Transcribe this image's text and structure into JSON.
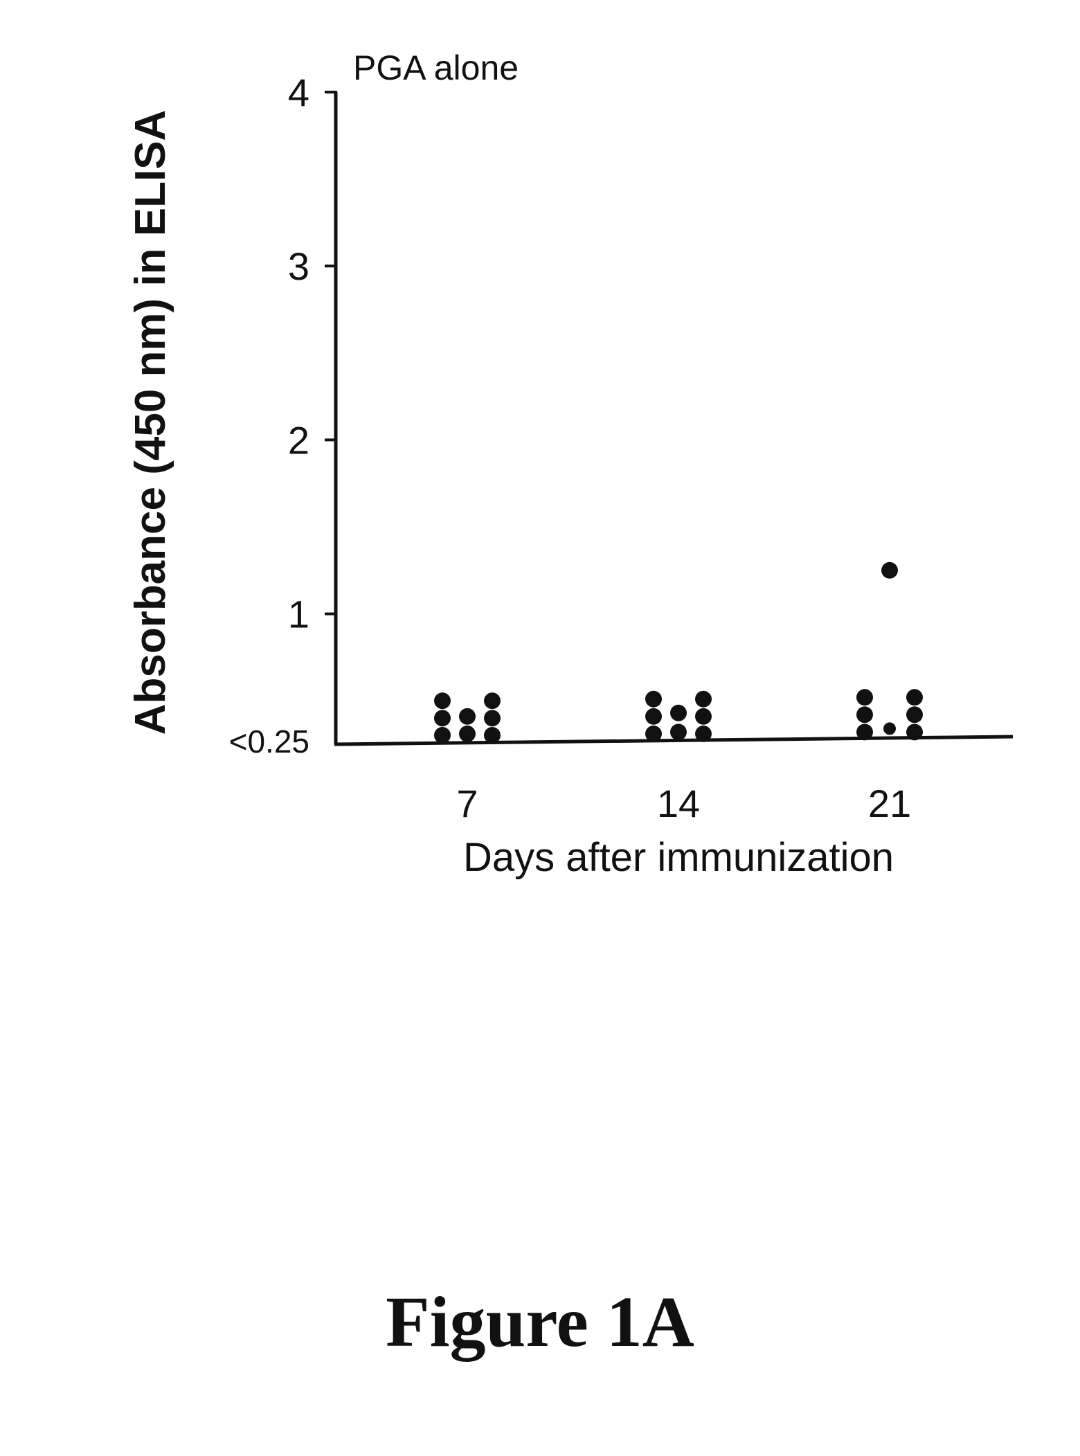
{
  "figure_caption": "Figure 1A",
  "colors": {
    "ink": "#111111",
    "background": "#ffffff"
  },
  "chart_data": {
    "type": "scatter",
    "title": "PGA alone",
    "xlabel": "Days after immunization",
    "ylabel": "Absorbance (450 nm) in ELISA",
    "categories": [
      "7",
      "14",
      "21"
    ],
    "y_tick_labels": [
      "<0.25",
      "1",
      "2",
      "3",
      "4"
    ],
    "y_tick_values": [
      0.25,
      1,
      2,
      3,
      4
    ],
    "ylim": [
      0.25,
      4
    ],
    "grid": false,
    "legend": "none",
    "groups": [
      {
        "x": "7",
        "columns": [
          {
            "values": [
              0.5,
              0.4,
              0.3
            ]
          },
          {
            "values": [
              0.41,
              0.31
            ]
          },
          {
            "values": [
              0.5,
              0.4,
              0.3
            ]
          }
        ]
      },
      {
        "x": "14",
        "columns": [
          {
            "values": [
              0.51,
              0.41,
              0.31
            ]
          },
          {
            "values": [
              0.43,
              0.32
            ]
          },
          {
            "values": [
              0.51,
              0.41,
              0.31
            ]
          }
        ]
      },
      {
        "x": "21",
        "columns": [
          {
            "values": [
              0.52,
              0.42,
              0.32
            ]
          },
          {
            "values": [
              1.25,
              0.34
            ]
          },
          {
            "values": [
              0.52,
              0.42,
              0.32
            ]
          }
        ]
      }
    ]
  }
}
